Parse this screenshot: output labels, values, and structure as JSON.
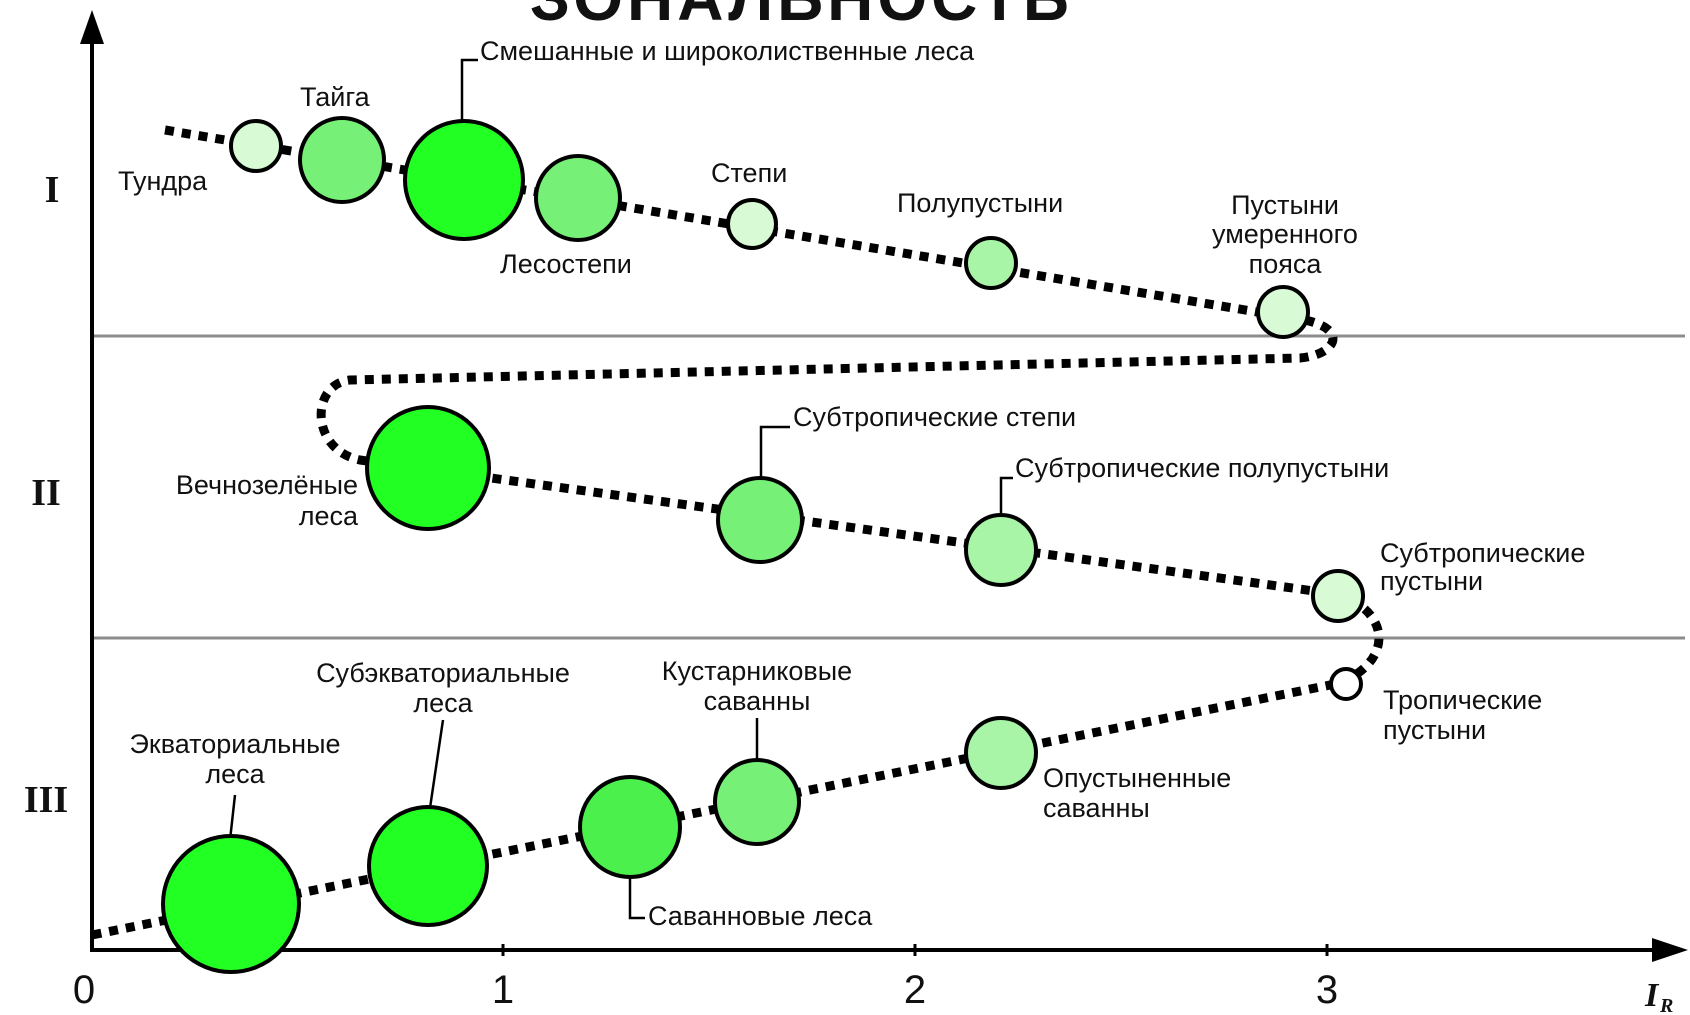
{
  "title_clipped": "ЗОНАЛЬНОСТЬ",
  "zones": [
    "I",
    "II",
    "III"
  ],
  "axis": {
    "ticks": [
      "0",
      "1",
      "2",
      "3"
    ],
    "x_title": "I",
    "x_title_sub": "R"
  },
  "colors": {
    "dark_green": "#22ff22",
    "mid_green": "#77f077",
    "light_green": "#a8f5a8",
    "pale_green": "#d8fbd6",
    "white": "#ffffff",
    "separator": "#8c8c8c"
  },
  "labels": {
    "tundra": "Тундра",
    "taiga": "Тайга",
    "mixed_forests": "Смешанные и широколиственные леса",
    "forest_steppe": "Лесостепи",
    "steppe": "Степи",
    "semi_desert": "Полупустыни",
    "temperate_desert": [
      "Пустыни",
      "умеренного",
      "пояса"
    ],
    "evergreen_forests": [
      "Вечнозелёные",
      "леса"
    ],
    "subtropical_steppe": "Субтропические степи",
    "subtropical_semidesert": "Субтропические полупустыни",
    "subtropical_desert": [
      "Субтропические",
      "пустыни"
    ],
    "equatorial_forests": [
      "Экваториальные",
      "леса"
    ],
    "subequatorial_forests": [
      "Субэкваториальные",
      "леса"
    ],
    "shrub_savanna": [
      "Кустарниковые",
      "саванны"
    ],
    "savanna_forests": "Саванновые леса",
    "desert_savanna": [
      "Опустыненные",
      "саванны"
    ],
    "tropical_desert": [
      "Тропические",
      "пустыни"
    ]
  }
}
